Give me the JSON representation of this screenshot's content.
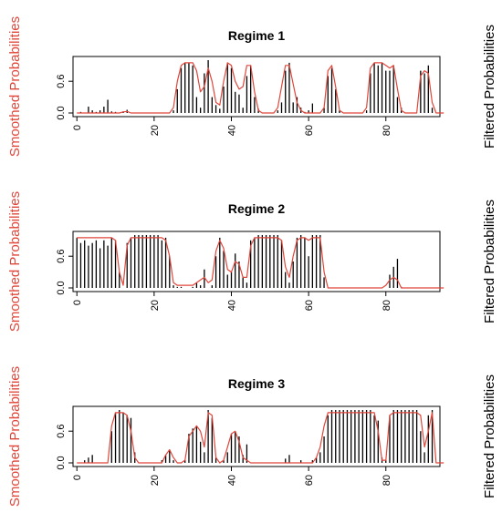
{
  "colors": {
    "smoothed": "#e0463a",
    "filtered": "#000000",
    "axis": "#000000"
  },
  "chart_data": [
    {
      "type": "bar",
      "title": "Regime 1",
      "ylabel_left": "Smoothed Probabilities",
      "ylabel_right": "Filtered Probabilities",
      "xlim": [
        -1,
        94
      ],
      "ylim": [
        0,
        1
      ],
      "yticks": [
        0.0,
        0.6
      ],
      "xticks": [
        0,
        20,
        40,
        60,
        80
      ],
      "filtered": [
        0,
        0.02,
        0,
        0.12,
        0.05,
        0.02,
        0.05,
        0.12,
        0.25,
        0.03,
        0.02,
        0,
        0.03,
        0.06,
        0,
        0,
        0,
        0,
        0,
        0,
        0,
        0,
        0,
        0,
        0,
        0.05,
        0.45,
        0.85,
        0.95,
        0.95,
        0.9,
        0.3,
        0.1,
        0.75,
        1.0,
        0.3,
        0.15,
        0.08,
        0.5,
        0.95,
        0.85,
        0.4,
        0.35,
        0.1,
        0.7,
        0.9,
        0.3,
        0.08,
        0,
        0,
        0,
        0,
        0.05,
        0.2,
        0.8,
        0.95,
        0.2,
        0.3,
        0.1,
        0.02,
        0.05,
        0.18,
        0,
        0,
        0.1,
        0.7,
        0.85,
        0.45,
        0.05,
        0,
        0,
        0,
        0,
        0,
        0,
        0.05,
        0.75,
        0.95,
        0.9,
        0.95,
        0.8,
        0.8,
        0.9,
        0.3,
        0.1,
        0,
        0,
        0,
        0,
        0.8,
        0.75,
        0.9,
        0.1,
        0,
        0,
        0
      ],
      "smoothed": [
        0,
        0,
        0,
        0,
        0,
        0,
        0,
        0,
        0,
        0,
        0,
        0,
        0.02,
        0.03,
        0,
        0,
        0,
        0,
        0,
        0,
        0,
        0,
        0,
        0,
        0,
        0.1,
        0.6,
        0.9,
        0.95,
        0.95,
        0.95,
        0.8,
        0.4,
        0.5,
        0.85,
        0.6,
        0.2,
        0.15,
        0.6,
        0.95,
        0.9,
        0.6,
        0.45,
        0.5,
        0.9,
        0.9,
        0.4,
        0.05,
        0,
        0,
        0,
        0,
        0.1,
        0.5,
        0.9,
        0.9,
        0.55,
        0.2,
        0.05,
        0,
        0,
        0,
        0,
        0,
        0.1,
        0.8,
        0.9,
        0.5,
        0.05,
        0,
        0,
        0,
        0,
        0,
        0,
        0.1,
        0.85,
        0.95,
        0.95,
        0.95,
        0.9,
        0.85,
        0.9,
        0.45,
        0.05,
        0,
        0,
        0,
        0,
        0.7,
        0.8,
        0.75,
        0.2,
        0,
        0,
        0
      ]
    },
    {
      "type": "bar",
      "title": "Regime 2",
      "ylabel_left": "Smoothed Probabilities",
      "ylabel_right": "Filtered Probabilities",
      "xlim": [
        -1,
        94
      ],
      "ylim": [
        0,
        1
      ],
      "yticks": [
        0.0,
        0.6
      ],
      "xticks": [
        0,
        20,
        40,
        60,
        80
      ],
      "filtered": [
        0.95,
        0.85,
        0.9,
        0.8,
        0.85,
        0.9,
        0.75,
        0.9,
        0.8,
        0.95,
        0.9,
        0.3,
        0,
        0.85,
        0.95,
        1.0,
        1.0,
        1.0,
        1.0,
        1.0,
        1.0,
        1.0,
        0.9,
        0.95,
        0.6,
        0.05,
        0.02,
        0.02,
        0,
        0,
        0.02,
        0.1,
        0.05,
        0.35,
        0,
        0.05,
        0.6,
        0.95,
        0.7,
        0.25,
        0.3,
        0.65,
        0.5,
        0.2,
        0.1,
        0.9,
        0.95,
        1.0,
        1.0,
        1.0,
        1.0,
        1.0,
        1.0,
        0.9,
        0.3,
        0.1,
        0.5,
        0.95,
        1.0,
        0.95,
        0.6,
        1.0,
        1.0,
        1.0,
        0.2,
        0,
        0,
        0,
        0,
        0,
        0,
        0,
        0,
        0,
        0,
        0,
        0,
        0,
        0,
        0,
        0,
        0.25,
        0.4,
        0.55,
        0.02,
        0,
        0,
        0,
        0,
        0,
        0,
        0,
        0,
        0,
        0,
        0
      ],
      "smoothed": [
        0.95,
        0.95,
        0.95,
        0.95,
        0.95,
        0.95,
        0.95,
        0.95,
        0.95,
        0.95,
        0.9,
        0.3,
        0.05,
        0.8,
        0.95,
        0.95,
        0.95,
        0.95,
        0.95,
        0.95,
        0.95,
        0.95,
        0.95,
        0.9,
        0.6,
        0.1,
        0.05,
        0.05,
        0.05,
        0.05,
        0.05,
        0.1,
        0.15,
        0.2,
        0.1,
        0.15,
        0.7,
        0.9,
        0.75,
        0.35,
        0.3,
        0.5,
        0.45,
        0.2,
        0.2,
        0.8,
        0.95,
        0.95,
        0.95,
        0.95,
        0.95,
        0.95,
        0.95,
        0.9,
        0.4,
        0.2,
        0.6,
        0.9,
        0.95,
        0.95,
        0.9,
        0.95,
        0.95,
        0.95,
        0.3,
        0,
        0,
        0,
        0,
        0,
        0,
        0,
        0,
        0,
        0,
        0,
        0,
        0,
        0,
        0,
        0.05,
        0.15,
        0.2,
        0.15,
        0,
        0,
        0,
        0,
        0,
        0,
        0,
        0,
        0,
        0,
        0,
        0
      ]
    },
    {
      "type": "bar",
      "title": "Regime 3",
      "ylabel_left": "Smoothed Probabilities",
      "ylabel_right": "Filtered Probabilities",
      "xlim": [
        -1,
        94
      ],
      "ylim": [
        0,
        1
      ],
      "yticks": [
        0.0,
        0.6
      ],
      "xticks": [
        0,
        20,
        40,
        60,
        80
      ],
      "filtered": [
        0,
        0,
        0.05,
        0.1,
        0.15,
        0,
        0,
        0,
        0,
        0.6,
        0.95,
        1.0,
        0.95,
        0.9,
        0.85,
        0.2,
        0,
        0,
        0,
        0,
        0,
        0,
        0.05,
        0.15,
        0.25,
        0.05,
        0,
        0,
        0.05,
        0.55,
        0.65,
        0.7,
        0.4,
        0.2,
        1.0,
        0.85,
        0.1,
        0,
        0.05,
        0.2,
        0.55,
        0.6,
        0.5,
        0.15,
        0.35,
        0,
        0,
        0,
        0,
        0,
        0,
        0,
        0,
        0,
        0.08,
        0.15,
        0,
        0,
        0.05,
        0,
        0,
        0.05,
        0.1,
        0.2,
        0.5,
        0.9,
        1.0,
        1.0,
        1.0,
        1.0,
        1.0,
        1.0,
        1.0,
        1.0,
        1.0,
        1.0,
        1.0,
        0.9,
        0.8,
        0.1,
        0.05,
        0.9,
        1.0,
        1.0,
        1.0,
        1.0,
        1.0,
        1.0,
        1.0,
        0.6,
        0.2,
        0.9,
        1.0,
        0,
        0,
        0
      ],
      "smoothed": [
        0,
        0,
        0,
        0,
        0,
        0,
        0,
        0,
        0,
        0.7,
        0.95,
        0.95,
        0.95,
        0.9,
        0.6,
        0.1,
        0,
        0,
        0,
        0,
        0,
        0,
        0,
        0.15,
        0.25,
        0.1,
        0,
        0,
        0.05,
        0.5,
        0.6,
        0.7,
        0.6,
        0.3,
        0.95,
        0.9,
        0.1,
        0,
        0.05,
        0.3,
        0.55,
        0.6,
        0.4,
        0.1,
        0.05,
        0,
        0,
        0,
        0,
        0,
        0,
        0,
        0,
        0,
        0,
        0,
        0,
        0,
        0,
        0,
        0,
        0,
        0.1,
        0.3,
        0.7,
        0.95,
        0.95,
        0.95,
        0.95,
        0.95,
        0.95,
        0.95,
        0.95,
        0.95,
        0.95,
        0.95,
        0.95,
        0.95,
        0.6,
        0.05,
        0.05,
        0.9,
        0.95,
        0.95,
        0.95,
        0.95,
        0.95,
        0.95,
        0.95,
        0.9,
        0.3,
        0.6,
        0.95,
        0,
        0,
        0
      ]
    }
  ]
}
